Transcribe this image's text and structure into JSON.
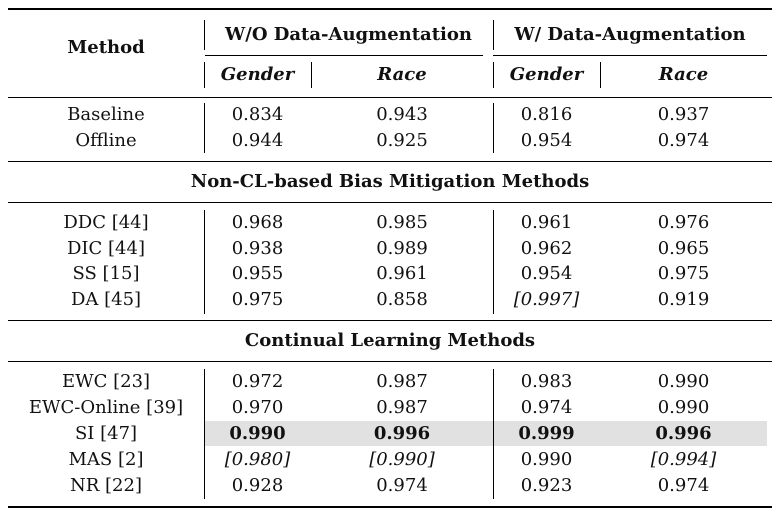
{
  "header": {
    "method": "Method",
    "group_without": "W/O Data-Augmentation",
    "group_with": "W/ Data-Augmentation",
    "sub": [
      "Gender",
      "Race",
      "Gender",
      "Race"
    ]
  },
  "sections": [
    {
      "title": "",
      "rows": [
        {
          "method": "Baseline",
          "values": [
            "0.834",
            "0.943",
            "0.816",
            "0.937"
          ]
        },
        {
          "method": "Offline",
          "values": [
            "0.944",
            "0.925",
            "0.954",
            "0.974"
          ]
        }
      ]
    },
    {
      "title": "Non-CL-based Bias Mitigation Methods",
      "rows": [
        {
          "method": "DDC [44]",
          "values": [
            "0.968",
            "0.985",
            "0.961",
            "0.976"
          ]
        },
        {
          "method": "DIC [44]",
          "values": [
            "0.938",
            "0.989",
            "0.962",
            "0.965"
          ]
        },
        {
          "method": "SS [15]",
          "values": [
            "0.955",
            "0.961",
            "0.954",
            "0.975"
          ]
        },
        {
          "method": "DA [45]",
          "values": [
            "0.975",
            "0.858",
            "[0.997]",
            "0.919"
          ]
        }
      ]
    },
    {
      "title": "Continual Learning Methods",
      "rows": [
        {
          "method": "EWC [23]",
          "values": [
            "0.972",
            "0.987",
            "0.983",
            "0.990"
          ]
        },
        {
          "method": "EWC-Online [39]",
          "values": [
            "0.970",
            "0.987",
            "0.974",
            "0.990"
          ]
        },
        {
          "method": "SI [47]",
          "values": [
            "0.990",
            "0.996",
            "0.999",
            "0.996"
          ]
        },
        {
          "method": "MAS [2]",
          "values": [
            "[0.980]",
            "[0.990]",
            "0.990",
            "[0.994]"
          ]
        },
        {
          "method": "NR [22]",
          "values": [
            "0.928",
            "0.974",
            "0.923",
            "0.974"
          ]
        }
      ]
    }
  ]
}
